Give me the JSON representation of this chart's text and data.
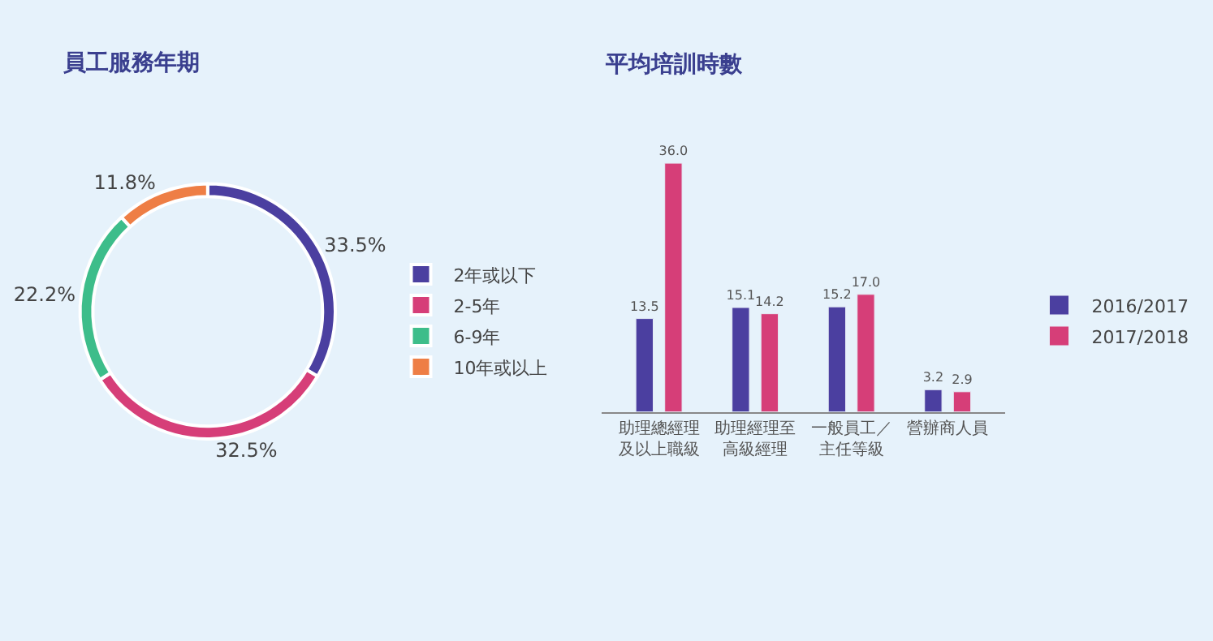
{
  "chart_data": [
    {
      "type": "donut",
      "title": "員工服務年期",
      "categories": [
        "2年或以下",
        "2-5年",
        "6-9年",
        "10年或以上"
      ],
      "values": [
        33.5,
        32.5,
        22.2,
        11.8
      ],
      "colors": [
        "#4b3fa0",
        "#d63e78",
        "#3dbd8a",
        "#ee7e45"
      ],
      "value_labels": [
        "33.5%",
        "32.5%",
        "22.2%",
        "11.8%"
      ],
      "legend": "right"
    },
    {
      "type": "bar",
      "title": "平均培訓時數",
      "categories": [
        "助理總經理及以上職級",
        "助理經理至高級經理",
        "一般員工／主任等級",
        "營辦商人員"
      ],
      "series": [
        {
          "name": "2016/2017",
          "color": "#4b3fa0",
          "values": [
            13.5,
            15.1,
            15.2,
            3.2
          ],
          "value_labels": [
            "13.5",
            "15.1",
            "15.2",
            "3.2"
          ]
        },
        {
          "name": "2017/2018",
          "color": "#d63e78",
          "values": [
            36,
            14.2,
            17,
            2.9
          ],
          "value_labels": [
            "36.0",
            "14.2",
            "17.0",
            "2.9"
          ]
        }
      ],
      "legend": "right"
    }
  ]
}
